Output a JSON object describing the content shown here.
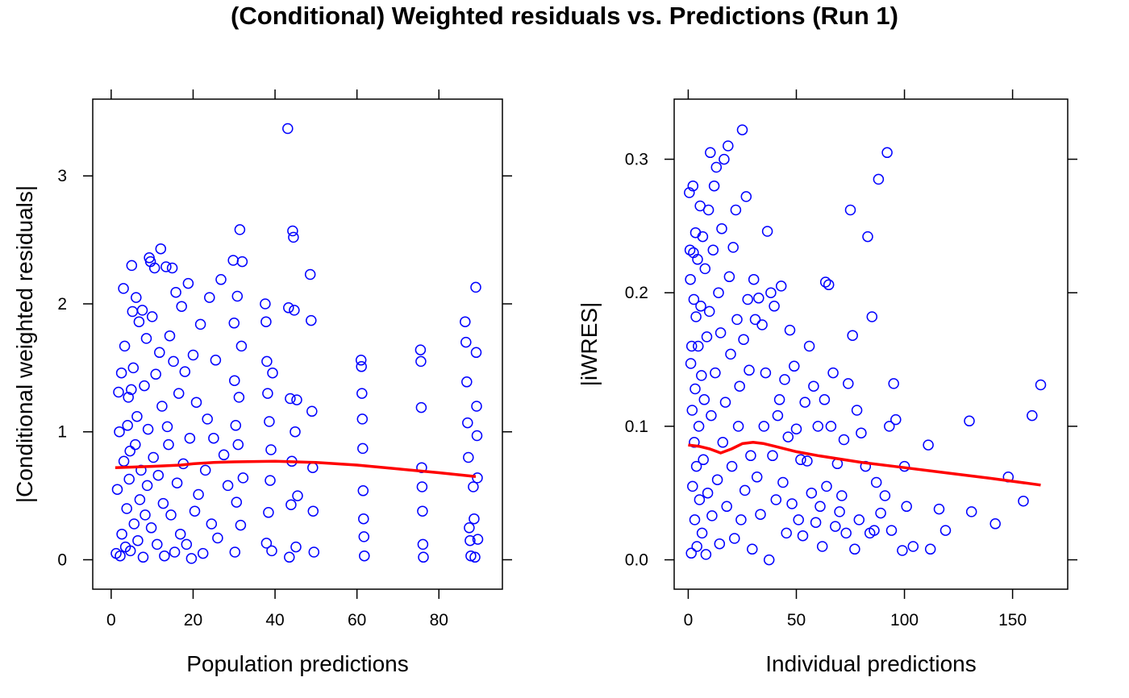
{
  "title": "(Conditional) Weighted residuals vs. Predictions (Run 1)",
  "colors": {
    "points": "#0000ff",
    "smooth": "#ff0000",
    "frame": "#000000"
  },
  "chart_data": [
    {
      "type": "scatter",
      "xlabel": "Population predictions",
      "ylabel": "|Conditional weighted residuals|",
      "xlim": [
        -4.5,
        95.5
      ],
      "ylim": [
        -0.23,
        3.6
      ],
      "xticks": [
        0,
        20,
        40,
        60,
        80
      ],
      "yticks": [
        0,
        1,
        2,
        3
      ],
      "grid": false,
      "points": [
        [
          1.2,
          0.05
        ],
        [
          1.5,
          0.55
        ],
        [
          1.8,
          1.31
        ],
        [
          2.0,
          1.0
        ],
        [
          2.2,
          0.03
        ],
        [
          2.5,
          1.46
        ],
        [
          2.6,
          0.2
        ],
        [
          3.0,
          2.12
        ],
        [
          3.1,
          0.77
        ],
        [
          3.3,
          1.67
        ],
        [
          3.5,
          0.1
        ],
        [
          3.8,
          0.4
        ],
        [
          4.0,
          1.05
        ],
        [
          4.2,
          1.27
        ],
        [
          4.4,
          0.63
        ],
        [
          4.6,
          0.85
        ],
        [
          4.7,
          0.07
        ],
        [
          4.9,
          1.33
        ],
        [
          5.0,
          2.3
        ],
        [
          5.2,
          1.94
        ],
        [
          5.4,
          1.5
        ],
        [
          5.6,
          0.28
        ],
        [
          5.9,
          0.9
        ],
        [
          6.1,
          2.05
        ],
        [
          6.3,
          1.12
        ],
        [
          6.5,
          0.15
        ],
        [
          6.8,
          1.86
        ],
        [
          7.0,
          0.47
        ],
        [
          7.3,
          0.7
        ],
        [
          7.6,
          1.95
        ],
        [
          7.8,
          0.02
        ],
        [
          8.1,
          1.36
        ],
        [
          8.3,
          0.35
        ],
        [
          8.6,
          1.73
        ],
        [
          8.8,
          0.58
        ],
        [
          9.0,
          1.02
        ],
        [
          9.3,
          2.36
        ],
        [
          9.6,
          2.33
        ],
        [
          9.8,
          0.25
        ],
        [
          10.0,
          1.9
        ],
        [
          10.3,
          0.8
        ],
        [
          10.6,
          2.28
        ],
        [
          10.9,
          1.45
        ],
        [
          11.2,
          0.12
        ],
        [
          11.5,
          0.66
        ],
        [
          11.8,
          1.62
        ],
        [
          12.1,
          2.43
        ],
        [
          12.4,
          1.2
        ],
        [
          12.7,
          0.44
        ],
        [
          13.0,
          0.03
        ],
        [
          13.4,
          2.29
        ],
        [
          13.7,
          1.04
        ],
        [
          14.0,
          0.9
        ],
        [
          14.3,
          1.75
        ],
        [
          14.6,
          0.35
        ],
        [
          14.9,
          2.28
        ],
        [
          15.2,
          1.55
        ],
        [
          15.5,
          0.06
        ],
        [
          15.8,
          2.09
        ],
        [
          16.1,
          0.6
        ],
        [
          16.5,
          1.3
        ],
        [
          16.9,
          0.2
        ],
        [
          17.2,
          1.98
        ],
        [
          17.6,
          0.75
        ],
        [
          18.0,
          1.47
        ],
        [
          18.4,
          0.12
        ],
        [
          18.8,
          2.16
        ],
        [
          19.2,
          0.95
        ],
        [
          19.6,
          0.01
        ],
        [
          20.0,
          1.6
        ],
        [
          20.4,
          0.38
        ],
        [
          20.8,
          1.23
        ],
        [
          21.3,
          0.51
        ],
        [
          21.8,
          1.84
        ],
        [
          22.4,
          0.05
        ],
        [
          23.0,
          0.7
        ],
        [
          23.5,
          1.1
        ],
        [
          24.0,
          2.05
        ],
        [
          24.5,
          0.28
        ],
        [
          25.0,
          0.95
        ],
        [
          25.5,
          1.56
        ],
        [
          26.0,
          0.17
        ],
        [
          26.8,
          2.19
        ],
        [
          27.5,
          0.82
        ],
        [
          28.5,
          0.58
        ],
        [
          29.8,
          2.34
        ],
        [
          30.0,
          1.85
        ],
        [
          30.1,
          1.4
        ],
        [
          30.2,
          0.06
        ],
        [
          30.4,
          1.05
        ],
        [
          30.6,
          0.45
        ],
        [
          30.8,
          2.06
        ],
        [
          31.0,
          0.9
        ],
        [
          31.2,
          1.27
        ],
        [
          31.4,
          2.58
        ],
        [
          31.6,
          0.27
        ],
        [
          31.8,
          1.67
        ],
        [
          32.0,
          2.33
        ],
        [
          32.2,
          0.64
        ],
        [
          37.6,
          2.0
        ],
        [
          37.8,
          1.86
        ],
        [
          37.9,
          0.13
        ],
        [
          38.0,
          1.55
        ],
        [
          38.2,
          1.3
        ],
        [
          38.4,
          0.37
        ],
        [
          38.6,
          1.08
        ],
        [
          38.8,
          0.62
        ],
        [
          39.0,
          0.86
        ],
        [
          39.2,
          0.07
        ],
        [
          39.4,
          1.46
        ],
        [
          43.1,
          3.37
        ],
        [
          43.3,
          1.97
        ],
        [
          43.5,
          0.02
        ],
        [
          43.7,
          1.26
        ],
        [
          43.9,
          0.43
        ],
        [
          44.1,
          0.77
        ],
        [
          44.3,
          2.57
        ],
        [
          44.5,
          2.52
        ],
        [
          44.7,
          1.95
        ],
        [
          44.9,
          1.0
        ],
        [
          45.1,
          0.1
        ],
        [
          45.3,
          1.25
        ],
        [
          45.5,
          0.5
        ],
        [
          48.6,
          2.23
        ],
        [
          48.8,
          1.87
        ],
        [
          49.0,
          1.16
        ],
        [
          49.2,
          0.72
        ],
        [
          49.3,
          0.38
        ],
        [
          49.5,
          0.06
        ],
        [
          61.0,
          1.56
        ],
        [
          61.1,
          1.51
        ],
        [
          61.2,
          1.3
        ],
        [
          61.3,
          1.1
        ],
        [
          61.4,
          0.87
        ],
        [
          61.5,
          0.54
        ],
        [
          61.6,
          0.32
        ],
        [
          61.7,
          0.18
        ],
        [
          61.8,
          0.03
        ],
        [
          75.5,
          1.64
        ],
        [
          75.6,
          1.55
        ],
        [
          75.7,
          1.19
        ],
        [
          75.8,
          0.72
        ],
        [
          75.9,
          0.57
        ],
        [
          76.0,
          0.38
        ],
        [
          76.1,
          0.12
        ],
        [
          76.2,
          0.02
        ],
        [
          86.4,
          1.86
        ],
        [
          86.6,
          1.7
        ],
        [
          86.8,
          1.39
        ],
        [
          87.0,
          1.07
        ],
        [
          87.2,
          0.8
        ],
        [
          87.4,
          0.25
        ],
        [
          87.6,
          0.15
        ],
        [
          87.8,
          0.03
        ],
        [
          88.4,
          0.57
        ],
        [
          88.6,
          0.32
        ],
        [
          88.8,
          0.02
        ],
        [
          89.0,
          2.13
        ],
        [
          89.1,
          1.62
        ],
        [
          89.2,
          1.2
        ],
        [
          89.3,
          0.97
        ],
        [
          89.4,
          0.64
        ],
        [
          89.5,
          0.16
        ]
      ],
      "smooth": [
        [
          1,
          0.72
        ],
        [
          10,
          0.73
        ],
        [
          17,
          0.74
        ],
        [
          20,
          0.75
        ],
        [
          25,
          0.76
        ],
        [
          30,
          0.765
        ],
        [
          40,
          0.77
        ],
        [
          50,
          0.76
        ],
        [
          60,
          0.74
        ],
        [
          70,
          0.71
        ],
        [
          80,
          0.68
        ],
        [
          89,
          0.65
        ]
      ]
    },
    {
      "type": "scatter",
      "xlabel": "Individual predictions",
      "ylabel": "|iWRES|",
      "xlim": [
        -6.5,
        175.5
      ],
      "ylim": [
        -0.022,
        0.345
      ],
      "xticks": [
        0,
        50,
        100,
        150
      ],
      "yticks": [
        0.0,
        0.1,
        0.2,
        0.3
      ],
      "ytick_labels": [
        "0.0",
        "0.1",
        "0.2",
        "0.3"
      ],
      "grid": false,
      "points": [
        [
          0.5,
          0.275
        ],
        [
          0.8,
          0.232
        ],
        [
          1.0,
          0.21
        ],
        [
          1.2,
          0.147
        ],
        [
          1.4,
          0.005
        ],
        [
          1.6,
          0.16
        ],
        [
          1.8,
          0.112
        ],
        [
          2.0,
          0.055
        ],
        [
          2.2,
          0.28
        ],
        [
          2.4,
          0.23
        ],
        [
          2.6,
          0.195
        ],
        [
          2.8,
          0.088
        ],
        [
          3.0,
          0.03
        ],
        [
          3.2,
          0.128
        ],
        [
          3.4,
          0.245
        ],
        [
          3.6,
          0.182
        ],
        [
          3.8,
          0.07
        ],
        [
          4.0,
          0.01
        ],
        [
          4.3,
          0.225
        ],
        [
          4.6,
          0.16
        ],
        [
          4.9,
          0.1
        ],
        [
          5.2,
          0.045
        ],
        [
          5.5,
          0.265
        ],
        [
          5.8,
          0.19
        ],
        [
          6.1,
          0.138
        ],
        [
          6.4,
          0.02
        ],
        [
          6.7,
          0.242
        ],
        [
          7.0,
          0.075
        ],
        [
          7.4,
          0.12
        ],
        [
          7.8,
          0.218
        ],
        [
          8.2,
          0.004
        ],
        [
          8.6,
          0.167
        ],
        [
          9.0,
          0.05
        ],
        [
          9.4,
          0.262
        ],
        [
          9.8,
          0.186
        ],
        [
          10.2,
          0.305
        ],
        [
          10.6,
          0.108
        ],
        [
          11.0,
          0.033
        ],
        [
          11.5,
          0.232
        ],
        [
          12.0,
          0.28
        ],
        [
          12.5,
          0.14
        ],
        [
          13.0,
          0.294
        ],
        [
          13.5,
          0.06
        ],
        [
          14.0,
          0.2
        ],
        [
          14.5,
          0.012
        ],
        [
          15.0,
          0.17
        ],
        [
          15.5,
          0.248
        ],
        [
          16.0,
          0.088
        ],
        [
          16.6,
          0.3
        ],
        [
          17.2,
          0.118
        ],
        [
          17.8,
          0.04
        ],
        [
          18.4,
          0.31
        ],
        [
          19.0,
          0.212
        ],
        [
          19.6,
          0.154
        ],
        [
          20.2,
          0.07
        ],
        [
          20.8,
          0.234
        ],
        [
          21.4,
          0.016
        ],
        [
          22.0,
          0.262
        ],
        [
          22.6,
          0.18
        ],
        [
          23.2,
          0.1
        ],
        [
          23.8,
          0.13
        ],
        [
          24.4,
          0.03
        ],
        [
          25.0,
          0.322
        ],
        [
          25.6,
          0.165
        ],
        [
          26.2,
          0.052
        ],
        [
          26.8,
          0.272
        ],
        [
          27.5,
          0.195
        ],
        [
          28.2,
          0.142
        ],
        [
          28.9,
          0.078
        ],
        [
          29.6,
          0.008
        ],
        [
          30.3,
          0.21
        ],
        [
          31.0,
          0.18
        ],
        [
          31.8,
          0.062
        ],
        [
          32.6,
          0.196
        ],
        [
          33.4,
          0.034
        ],
        [
          34.2,
          0.176
        ],
        [
          35.0,
          0.1
        ],
        [
          35.8,
          0.14
        ],
        [
          36.6,
          0.246
        ],
        [
          37.4,
          0.0
        ],
        [
          38.2,
          0.2
        ],
        [
          39.0,
          0.078
        ],
        [
          39.8,
          0.19
        ],
        [
          40.6,
          0.045
        ],
        [
          41.4,
          0.108
        ],
        [
          42.2,
          0.12
        ],
        [
          43.0,
          0.205
        ],
        [
          43.8,
          0.058
        ],
        [
          44.6,
          0.135
        ],
        [
          45.4,
          0.02
        ],
        [
          46.2,
          0.092
        ],
        [
          47.0,
          0.172
        ],
        [
          48.0,
          0.042
        ],
        [
          49.0,
          0.145
        ],
        [
          50.0,
          0.098
        ],
        [
          51.0,
          0.03
        ],
        [
          52.0,
          0.075
        ],
        [
          53.0,
          0.018
        ],
        [
          54.0,
          0.118
        ],
        [
          55.0,
          0.074
        ],
        [
          56.0,
          0.16
        ],
        [
          57.0,
          0.05
        ],
        [
          58.0,
          0.13
        ],
        [
          59.0,
          0.028
        ],
        [
          60.0,
          0.1
        ],
        [
          61.0,
          0.04
        ],
        [
          62.0,
          0.01
        ],
        [
          63.0,
          0.12
        ],
        [
          63.5,
          0.208
        ],
        [
          64.0,
          0.055
        ],
        [
          65.0,
          0.206
        ],
        [
          66.0,
          0.1
        ],
        [
          67.0,
          0.14
        ],
        [
          68.0,
          0.025
        ],
        [
          69.0,
          0.072
        ],
        [
          70.0,
          0.036
        ],
        [
          71.0,
          0.048
        ],
        [
          72.0,
          0.09
        ],
        [
          73.0,
          0.02
        ],
        [
          74.0,
          0.132
        ],
        [
          75.0,
          0.262
        ],
        [
          76.0,
          0.168
        ],
        [
          77.0,
          0.008
        ],
        [
          78.0,
          0.112
        ],
        [
          79.0,
          0.03
        ],
        [
          80.0,
          0.095
        ],
        [
          82.0,
          0.07
        ],
        [
          83.0,
          0.242
        ],
        [
          84.0,
          0.02
        ],
        [
          85.0,
          0.182
        ],
        [
          86.0,
          0.022
        ],
        [
          87.0,
          0.058
        ],
        [
          88.0,
          0.285
        ],
        [
          89.0,
          0.035
        ],
        [
          91.0,
          0.048
        ],
        [
          92.0,
          0.305
        ],
        [
          93.0,
          0.1
        ],
        [
          94.0,
          0.022
        ],
        [
          95.0,
          0.132
        ],
        [
          96.0,
          0.105
        ],
        [
          99.0,
          0.007
        ],
        [
          100.0,
          0.07
        ],
        [
          101.0,
          0.04
        ],
        [
          104.0,
          0.01
        ],
        [
          111.0,
          0.086
        ],
        [
          112.0,
          0.008
        ],
        [
          116.0,
          0.038
        ],
        [
          119.0,
          0.022
        ],
        [
          130.0,
          0.104
        ],
        [
          131.0,
          0.036
        ],
        [
          142.0,
          0.027
        ],
        [
          148.0,
          0.062
        ],
        [
          155.0,
          0.044
        ],
        [
          159.0,
          0.108
        ],
        [
          163.0,
          0.131
        ]
      ],
      "smooth": [
        [
          0,
          0.086
        ],
        [
          5,
          0.085
        ],
        [
          10,
          0.083
        ],
        [
          15,
          0.08
        ],
        [
          20,
          0.083
        ],
        [
          25,
          0.087
        ],
        [
          30,
          0.088
        ],
        [
          35,
          0.087
        ],
        [
          40,
          0.085
        ],
        [
          50,
          0.081
        ],
        [
          60,
          0.078
        ],
        [
          80,
          0.073
        ],
        [
          100,
          0.069
        ],
        [
          120,
          0.065
        ],
        [
          140,
          0.061
        ],
        [
          163,
          0.056
        ]
      ]
    }
  ]
}
